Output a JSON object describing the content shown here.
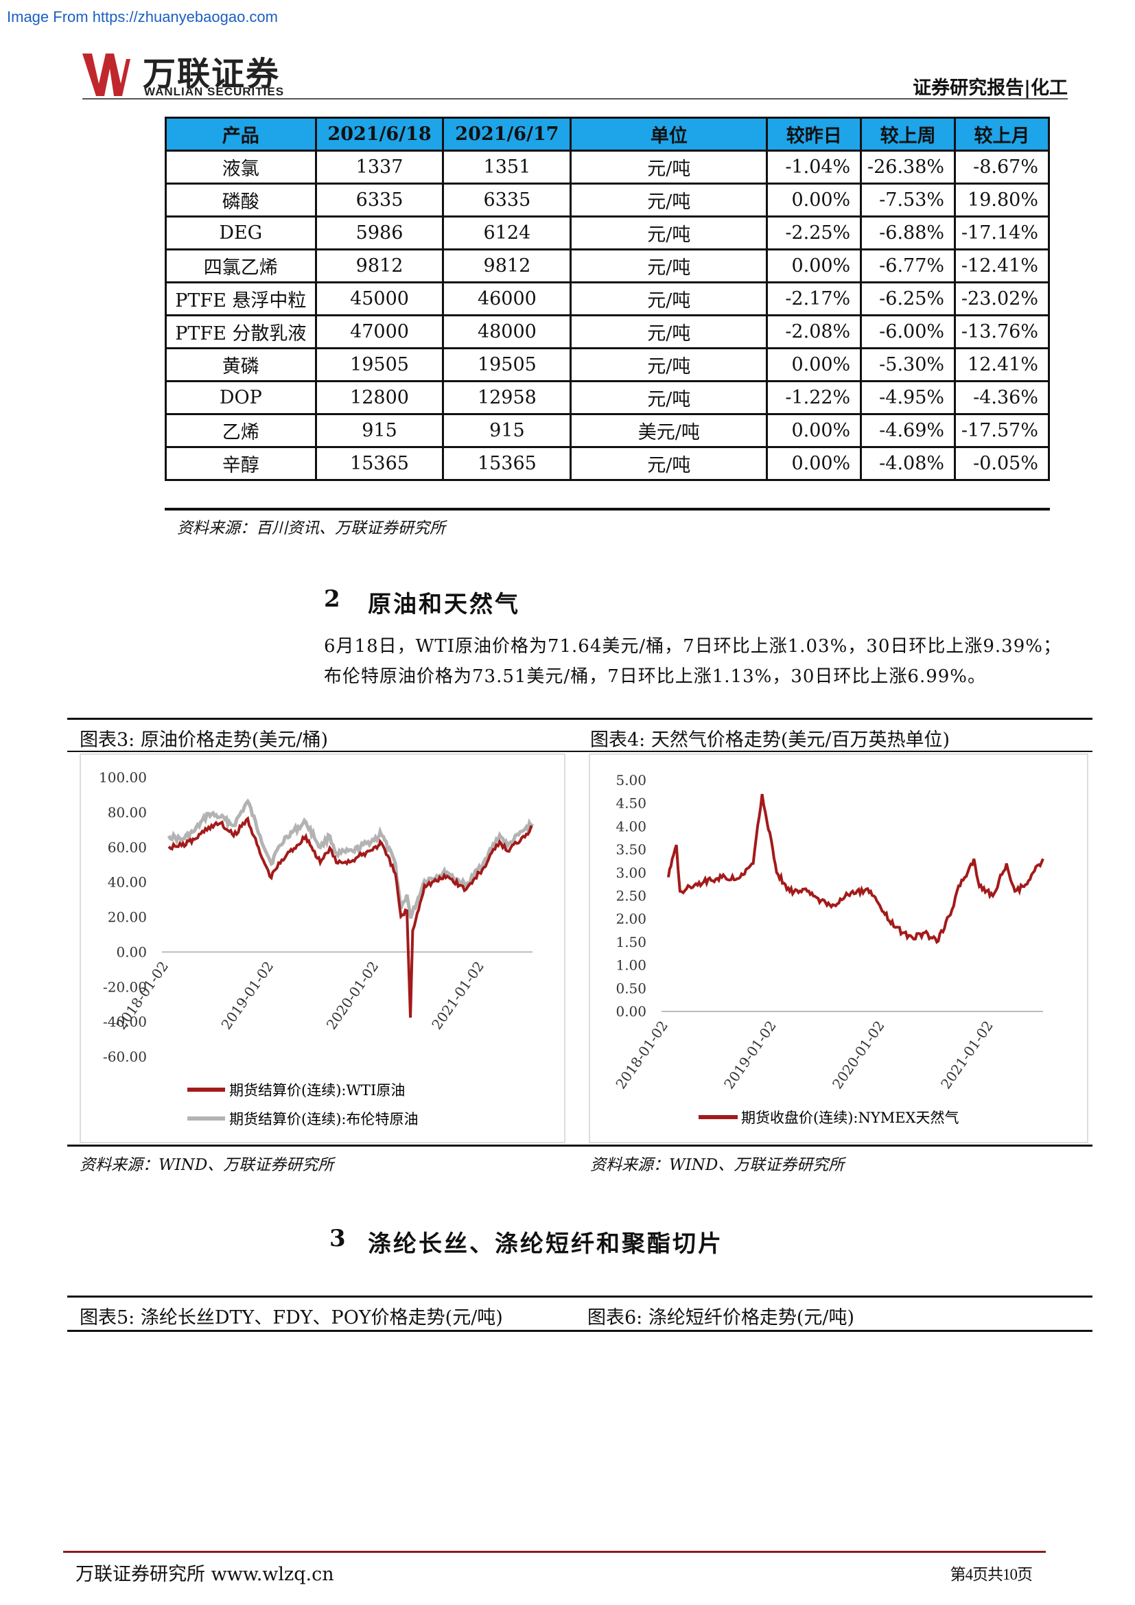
{
  "source_url": "Image From https://zhuanyebaogao.com",
  "logo": {
    "cn": "万联证券",
    "en": "WANLIAN SECURITIES"
  },
  "header_title": "证券研究报告|化工",
  "table": {
    "headers": [
      "产品",
      "2021/6/18",
      "2021/6/17",
      "单位",
      "较昨日",
      "较上周",
      "较上月"
    ],
    "rows": [
      [
        "液氯",
        "1337",
        "1351",
        "元/吨",
        "-1.04%",
        "-26.38%",
        "-8.67%"
      ],
      [
        "磷酸",
        "6335",
        "6335",
        "元/吨",
        "0.00%",
        "-7.53%",
        "19.80%"
      ],
      [
        "DEG",
        "5986",
        "6124",
        "元/吨",
        "-2.25%",
        "-6.88%",
        "-17.14%"
      ],
      [
        "四氯乙烯",
        "9812",
        "9812",
        "元/吨",
        "0.00%",
        "-6.77%",
        "-12.41%"
      ],
      [
        "PTFE 悬浮中粒",
        "45000",
        "46000",
        "元/吨",
        "-2.17%",
        "-6.25%",
        "-23.02%"
      ],
      [
        "PTFE 分散乳液",
        "47000",
        "48000",
        "元/吨",
        "-2.08%",
        "-6.00%",
        "-13.76%"
      ],
      [
        "黄磷",
        "19505",
        "19505",
        "元/吨",
        "0.00%",
        "-5.30%",
        "12.41%"
      ],
      [
        "DOP",
        "12800",
        "12958",
        "元/吨",
        "-1.22%",
        "-4.95%",
        "-4.36%"
      ],
      [
        "乙烯",
        "915",
        "915",
        "美元/吨",
        "0.00%",
        "-4.69%",
        "-17.57%"
      ],
      [
        "辛醇",
        "15365",
        "15365",
        "元/吨",
        "0.00%",
        "-4.08%",
        "-0.05%"
      ]
    ],
    "source": "资料来源：百川资讯、万联证券研究所"
  },
  "section2": {
    "number": "2",
    "title": "原油和天然气",
    "para1": "6月18日，WTI原油价格为71.64美元/桶，7日环比上涨1.03%，30日环比上涨9.39%；",
    "para2": "布伦特原油价格为73.51美元/桶，7日环比上涨1.13%，30日环比上涨6.99%。"
  },
  "fig3": {
    "caption": "图表3:  原油价格走势(美元/桶)",
    "source": "资料来源：WIND、万联证券研究所"
  },
  "fig4": {
    "caption": "图表4:  天然气价格走势(美元/百万英热单位)",
    "source": "资料来源：WIND、万联证券研究所"
  },
  "section3": {
    "number": "3",
    "title": "涤纶长丝、涤纶短纤和聚酯切片"
  },
  "fig5": {
    "caption": "图表5:  涤纶长丝DTY、FDY、POY价格走势(元/吨)"
  },
  "fig6": {
    "caption": "图表6:  涤纶短纤价格走势(元/吨)"
  },
  "footer": {
    "left": "万联证券研究所 www.wlzq.cn",
    "right": "第4页共10页"
  },
  "colors": {
    "header_fill": "#1ea4e8",
    "wti": "#a31a1a",
    "brent": "#b3b3b3",
    "gas": "#a31a1a",
    "footer_rule": "#8b1c1c"
  },
  "chart_data": [
    {
      "type": "line",
      "title": "",
      "x_ticks": [
        "2018-01-02",
        "2019-01-02",
        "2020-01-02",
        "2021-01-02"
      ],
      "ylim": [
        -60,
        100
      ],
      "y_ticks": [
        "100.00",
        "80.00",
        "60.00",
        "40.00",
        "20.00",
        "0.00",
        "-20.00",
        "-40.00",
        "-60.00"
      ],
      "legend_position": "bottom",
      "series": [
        {
          "name": "期货结算价(连续):WTI原油",
          "points": [
            [
              "2018-01-02",
              60.4
            ],
            [
              "2018-02-15",
              61.0
            ],
            [
              "2018-04-01",
              64.5
            ],
            [
              "2018-05-20",
              71.5
            ],
            [
              "2018-07-01",
              73.8
            ],
            [
              "2018-08-15",
              66.5
            ],
            [
              "2018-10-03",
              76.4
            ],
            [
              "2018-11-15",
              56.5
            ],
            [
              "2018-12-24",
              42.5
            ],
            [
              "2019-01-02",
              46.5
            ],
            [
              "2019-02-15",
              55.6
            ],
            [
              "2019-04-23",
              66.3
            ],
            [
              "2019-06-12",
              51.1
            ],
            [
              "2019-07-15",
              59.6
            ],
            [
              "2019-08-07",
              51.1
            ],
            [
              "2019-10-03",
              52.5
            ],
            [
              "2019-12-31",
              61.1
            ],
            [
              "2020-01-06",
              63.3
            ],
            [
              "2020-02-28",
              44.8
            ],
            [
              "2020-03-18",
              20.4
            ],
            [
              "2020-04-08",
              23.6
            ],
            [
              "2020-04-20",
              -37.6
            ],
            [
              "2020-04-28",
              12.3
            ],
            [
              "2020-06-08",
              38.2
            ],
            [
              "2020-08-26",
              43.4
            ],
            [
              "2020-10-30",
              35.8
            ],
            [
              "2020-12-31",
              48.5
            ],
            [
              "2021-02-24",
              63.2
            ],
            [
              "2021-03-23",
              57.8
            ],
            [
              "2021-05-17",
              66.3
            ],
            [
              "2021-06-18",
              71.6
            ]
          ]
        },
        {
          "name": "期货结算价(连续):布伦特原油",
          "points": [
            [
              "2018-01-02",
              66.6
            ],
            [
              "2018-02-15",
              64.3
            ],
            [
              "2018-04-01",
              69.3
            ],
            [
              "2018-05-20",
              79.3
            ],
            [
              "2018-07-01",
              77.3
            ],
            [
              "2018-08-15",
              72.5
            ],
            [
              "2018-10-03",
              86.3
            ],
            [
              "2018-11-15",
              66.6
            ],
            [
              "2018-12-24",
              50.5
            ],
            [
              "2019-01-02",
              54.9
            ],
            [
              "2019-02-15",
              66.3
            ],
            [
              "2019-04-23",
              74.5
            ],
            [
              "2019-06-12",
              59.9
            ],
            [
              "2019-07-15",
              66.5
            ],
            [
              "2019-08-07",
              56.2
            ],
            [
              "2019-10-03",
              57.7
            ],
            [
              "2019-12-31",
              66.0
            ],
            [
              "2020-01-06",
              68.9
            ],
            [
              "2020-02-28",
              50.5
            ],
            [
              "2020-03-18",
              24.9
            ],
            [
              "2020-04-08",
              32.8
            ],
            [
              "2020-04-21",
              19.3
            ],
            [
              "2020-06-08",
              40.8
            ],
            [
              "2020-08-26",
              45.6
            ],
            [
              "2020-10-30",
              37.9
            ],
            [
              "2020-12-31",
              51.8
            ],
            [
              "2021-02-24",
              67.0
            ],
            [
              "2021-03-23",
              60.8
            ],
            [
              "2021-05-17",
              69.5
            ],
            [
              "2021-06-18",
              73.5
            ]
          ]
        }
      ]
    },
    {
      "type": "line",
      "title": "",
      "x_ticks": [
        "2018-01-02",
        "2019-01-02",
        "2020-01-02",
        "2021-01-02"
      ],
      "ylim": [
        0,
        5
      ],
      "y_ticks": [
        "5.00",
        "4.50",
        "4.00",
        "3.50",
        "3.00",
        "2.50",
        "2.00",
        "1.50",
        "1.00",
        "0.50",
        "0.00"
      ],
      "legend_position": "bottom",
      "series": [
        {
          "name": "期货收盘价(连续):NYMEX天然气",
          "points": [
            [
              "2018-01-02",
              2.9
            ],
            [
              "2018-01-15",
              3.3
            ],
            [
              "2018-01-29",
              3.6
            ],
            [
              "2018-02-10",
              2.6
            ],
            [
              "2018-03-15",
              2.7
            ],
            [
              "2018-05-01",
              2.8
            ],
            [
              "2018-07-01",
              2.9
            ],
            [
              "2018-09-01",
              2.9
            ],
            [
              "2018-10-15",
              3.2
            ],
            [
              "2018-11-14",
              4.7
            ],
            [
              "2018-11-25",
              4.3
            ],
            [
              "2018-12-20",
              3.5
            ],
            [
              "2019-01-02",
              3.0
            ],
            [
              "2019-02-15",
              2.6
            ],
            [
              "2019-04-15",
              2.6
            ],
            [
              "2019-06-01",
              2.4
            ],
            [
              "2019-07-15",
              2.3
            ],
            [
              "2019-09-15",
              2.6
            ],
            [
              "2019-11-15",
              2.6
            ],
            [
              "2019-12-15",
              2.3
            ],
            [
              "2020-01-02",
              2.1
            ],
            [
              "2020-03-01",
              1.7
            ],
            [
              "2020-04-03",
              1.6
            ],
            [
              "2020-05-15",
              1.7
            ],
            [
              "2020-06-25",
              1.5
            ],
            [
              "2020-08-15",
              2.2
            ],
            [
              "2020-09-01",
              2.6
            ],
            [
              "2020-10-28",
              3.3
            ],
            [
              "2020-11-15",
              2.7
            ],
            [
              "2020-12-31",
              2.5
            ],
            [
              "2021-02-15",
              3.2
            ],
            [
              "2021-03-15",
              2.6
            ],
            [
              "2021-04-15",
              2.7
            ],
            [
              "2021-05-15",
              3.0
            ],
            [
              "2021-06-18",
              3.3
            ]
          ]
        }
      ]
    }
  ]
}
